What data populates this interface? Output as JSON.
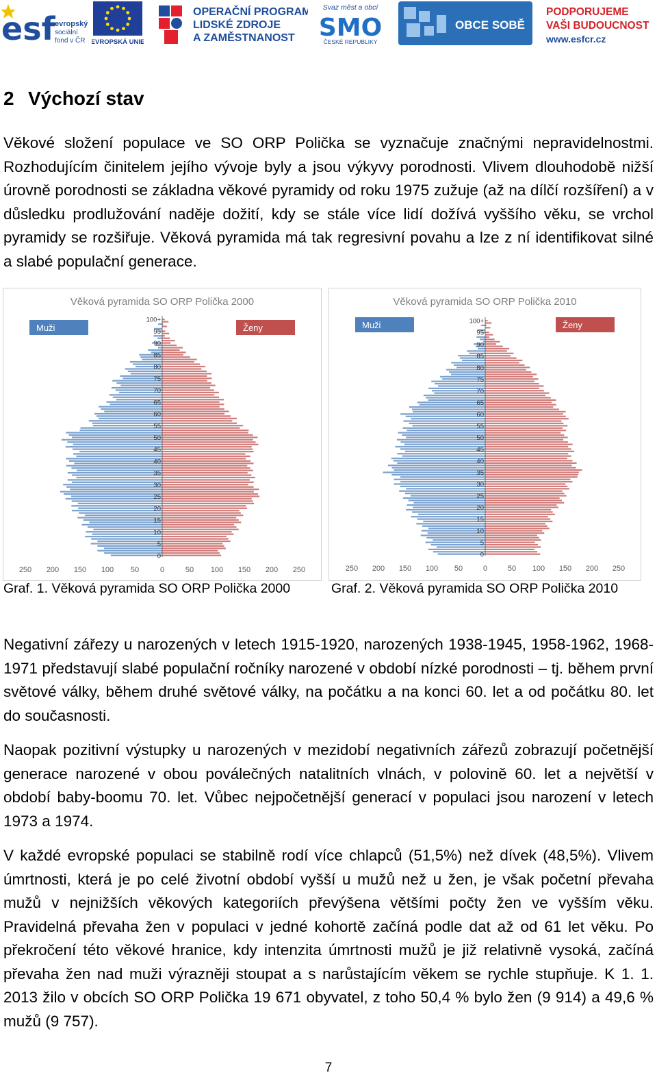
{
  "header": {
    "logos": [
      {
        "name": "esf",
        "lines": [
          "evropský",
          "sociální",
          "fond v ČR"
        ],
        "mark": "esf"
      },
      {
        "name": "eu",
        "lines": [
          "EVROPSKÁ UNIE"
        ]
      },
      {
        "name": "op",
        "lines": [
          "OPERAČNÍ PROGRAM",
          "LIDSKÉ ZDROJE",
          "A ZAMĚSTNANOST"
        ]
      },
      {
        "name": "smo",
        "lines": [
          "Svaz měst a obcí",
          "SMO",
          "ČESKÉ REPUBLIKY"
        ]
      },
      {
        "name": "obce",
        "lines": [
          "OBCE SOBĚ"
        ]
      },
      {
        "name": "podporujeme",
        "lines": [
          "PODPORUJEME",
          "VAŠI BUDOUCNOST",
          "www.esfcr.cz"
        ]
      }
    ]
  },
  "section": {
    "number": "2",
    "title": "Výchozí stav"
  },
  "paragraph1": "Věkové složení populace ve SO ORP Polička se vyznačuje značnými nepravidelnostmi. Rozhodujícím činitelem jejího vývoje byly a jsou výkyvy porodnosti. Vlivem dlouhodobě nižší úrovně porodnosti se základna věkové pyramidy od roku 1975 zužuje (až na dílčí rozšíření) a v důsledku prodlužování naděje dožití, kdy se stále více lidí dožívá vyššího věku, se vrchol pyramidy se rozšiřuje. Věková pyramida má tak regresivní povahu a lze z ní identifikovat silné a slabé populační generace.",
  "captions": {
    "graf1": "Graf. 1. Věková pyramida SO ORP Polička 2000",
    "graf2": "Graf. 2. Věková pyramida SO ORP Polička 2010"
  },
  "paragraph2": "Negativní zářezy u narozených v letech 1915-1920, narozených 1938-1945, 1958-1962, 1968-1971 představují slabé populační ročníky narozené v období nízké porodnosti – tj. během první světové války, během druhé světové války, na počátku a na konci 60. let a od počátku 80. let do současnosti.",
  "paragraph3": "Naopak pozitivní výstupky u narozených v mezidobí negativních zářezů zobrazují početnější generace narozené v obou poválečných natalitních vlnách, v polovině 60. let a největší v období baby-boomu 70. let. Vůbec nejpočetnější generací v populaci jsou narození v letech 1973 a 1974.",
  "paragraph4": "V každé evropské populaci se stabilně rodí více chlapců (51,5%) než dívek (48,5%). Vlivem úmrtnosti, která je po celé životní období vyšší u mužů než u žen, je však početní převaha mužů v nejnižších věkových kategoriích převýšena většími počty žen ve vyšším věku. Pravidelná převaha žen v populaci v jedné kohortě začíná podle dat až od 61 let věku. Po překročení této věkové hranice, kdy intenzita úmrtnosti mužů je již relativně vysoká, začíná převaha žen nad muži výrazněji stoupat a s narůstajícím věkem se rychle stupňuje. K 1. 1. 2013 žilo v obcích SO ORP Polička 19 671 obyvatel, z toho 50,4 % bylo žen (9 914) a 49,6 % mužů (9 757).",
  "page_number": "7",
  "chart_data": [
    {
      "type": "bar",
      "orientation": "horizontal-pyramid",
      "title": "Věková pyramida SO ORP Polička 2000",
      "legend": [
        "Muži",
        "Ženy"
      ],
      "legend_placement": "top",
      "age_axis_ticks": [
        "0",
        "5",
        "10",
        "15",
        "20",
        "25",
        "30",
        "35",
        "40",
        "45",
        "50",
        "55",
        "60",
        "65",
        "70",
        "75",
        "80",
        "85",
        "90",
        "95",
        "100+"
      ],
      "count_axis_ticks": [
        "250",
        "200",
        "150",
        "100",
        "50",
        "0",
        "50",
        "100",
        "150",
        "200",
        "250"
      ],
      "xlim": [
        -250,
        250
      ],
      "colors": {
        "men": "#4f81bd",
        "women": "#c0504d"
      },
      "anchors_age": [
        0,
        3,
        6,
        10,
        14,
        18,
        20,
        22,
        24,
        26,
        28,
        30,
        33,
        36,
        40,
        43,
        46,
        49,
        52,
        54,
        56,
        58,
        60,
        62,
        64,
        66,
        70,
        74,
        78,
        82,
        86,
        90,
        94,
        100
      ],
      "anchors_men": [
        105,
        115,
        125,
        135,
        142,
        150,
        158,
        165,
        170,
        180,
        175,
        170,
        168,
        165,
        168,
        158,
        170,
        175,
        165,
        145,
        130,
        125,
        115,
        110,
        100,
        95,
        85,
        80,
        65,
        50,
        25,
        12,
        5,
        2
      ],
      "anchors_women": [
        100,
        110,
        120,
        130,
        138,
        145,
        152,
        160,
        168,
        175,
        172,
        165,
        162,
        160,
        163,
        155,
        168,
        172,
        165,
        145,
        135,
        130,
        120,
        115,
        110,
        105,
        95,
        90,
        80,
        65,
        40,
        20,
        8,
        3
      ]
    },
    {
      "type": "bar",
      "orientation": "horizontal-pyramid",
      "title": "Věková pyramida SO ORP Polička 2010",
      "legend": [
        "Muži",
        "Ženy"
      ],
      "legend_placement": "top",
      "age_axis_ticks": [
        "0",
        "5",
        "10",
        "15",
        "20",
        "25",
        "30",
        "35",
        "40",
        "45",
        "50",
        "55",
        "60",
        "65",
        "70",
        "75",
        "80",
        "85",
        "90",
        "95",
        "100+"
      ],
      "count_axis_ticks": [
        "250",
        "200",
        "150",
        "100",
        "50",
        "0",
        "50",
        "100",
        "150",
        "200",
        "250"
      ],
      "xlim": [
        -250,
        250
      ],
      "colors": {
        "men": "#4f81bd",
        "women": "#c0504d"
      },
      "anchors_age": [
        0,
        3,
        6,
        10,
        14,
        18,
        22,
        26,
        30,
        33,
        35,
        37,
        40,
        42,
        46,
        50,
        54,
        56,
        58,
        60,
        62,
        64,
        66,
        70,
        74,
        78,
        82,
        86,
        90,
        94,
        100
      ],
      "anchors_men": [
        100,
        100,
        105,
        115,
        125,
        135,
        145,
        150,
        160,
        170,
        185,
        175,
        170,
        160,
        162,
        155,
        150,
        145,
        148,
        150,
        135,
        128,
        118,
        100,
        90,
        70,
        55,
        35,
        15,
        5,
        2
      ],
      "anchors_women": [
        95,
        98,
        100,
        110,
        120,
        128,
        140,
        148,
        158,
        165,
        180,
        170,
        165,
        158,
        160,
        150,
        148,
        145,
        150,
        152,
        140,
        130,
        125,
        110,
        100,
        85,
        70,
        50,
        25,
        10,
        3
      ]
    }
  ]
}
